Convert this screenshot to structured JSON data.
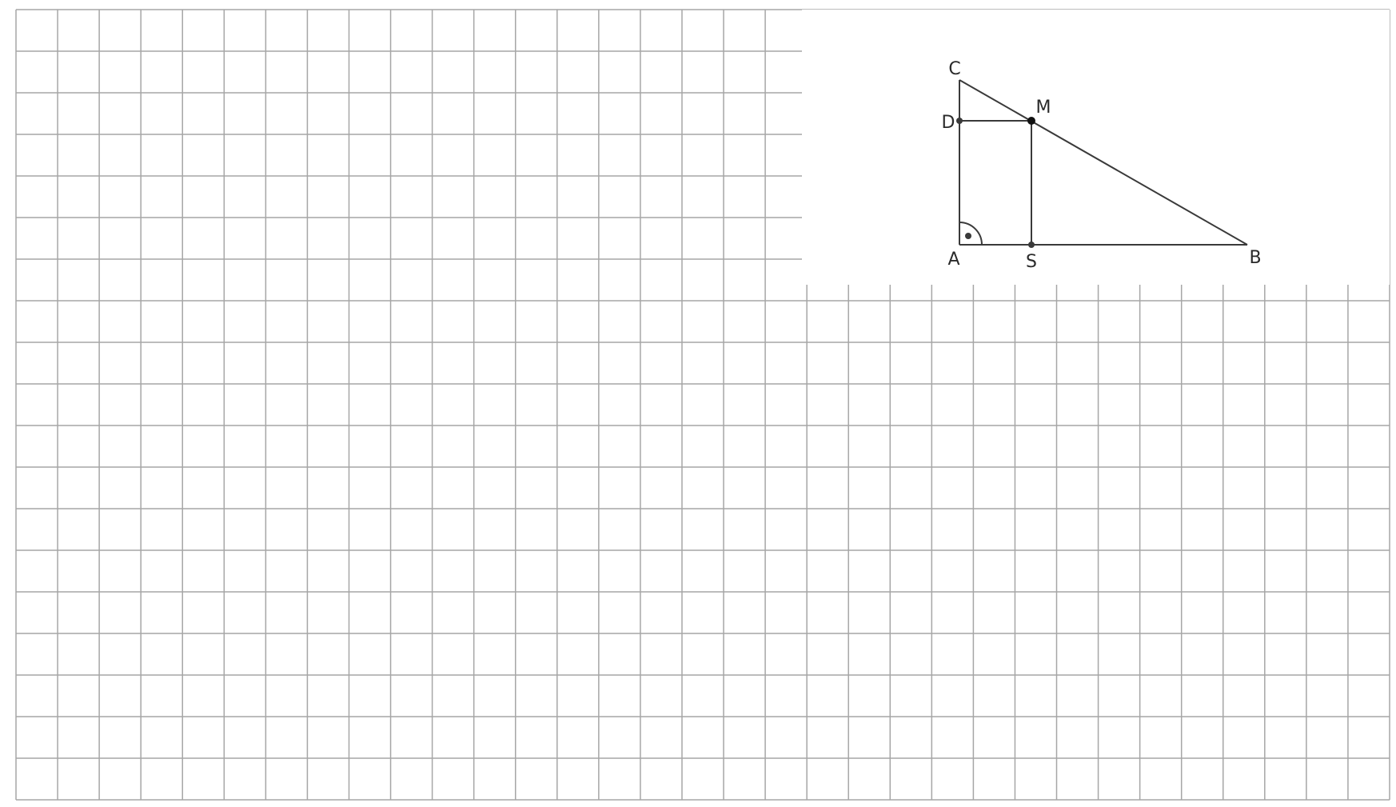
{
  "figure": {
    "points": {
      "A": {
        "label": "A"
      },
      "B": {
        "label": "B"
      },
      "C": {
        "label": "C"
      },
      "D": {
        "label": "D"
      },
      "M": {
        "label": "M"
      },
      "S": {
        "label": "S"
      }
    },
    "right_angle_at": "A",
    "segments": [
      "AB",
      "AC",
      "CB",
      "DM",
      "MS"
    ]
  },
  "colors": {
    "grid_line": "#a6a6a6",
    "figure_line": "#3a3a3a",
    "background": "#ffffff"
  }
}
